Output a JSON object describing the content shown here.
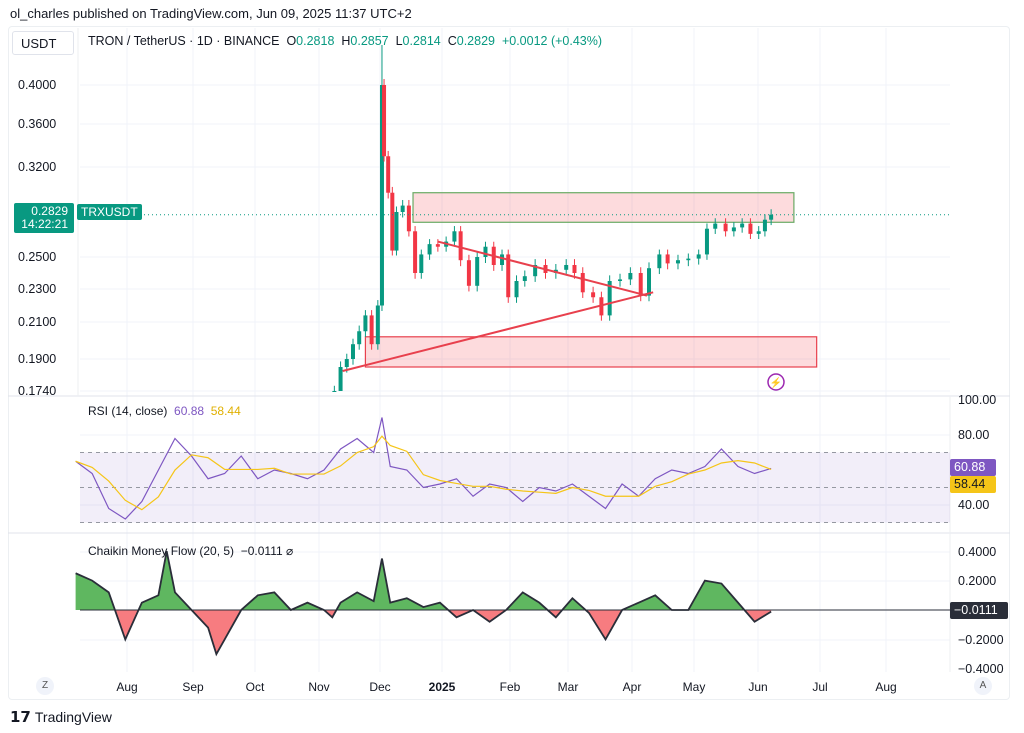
{
  "publisher": "ol_charles published on TradingView.com, Jun 09, 2025 11:37 UTC+2",
  "currency_button": "USDT",
  "legend": {
    "symbol": "TRON / TetherUS · 1D · BINANCE",
    "o_label": "O",
    "o": "0.2818",
    "h_label": "H",
    "h": "0.2857",
    "l_label": "L",
    "l": "0.2814",
    "c_label": "C",
    "c": "0.2829",
    "change": "+0.0012 (+0.43%)"
  },
  "price_tag": {
    "price": "0.2829",
    "countdown": "14:22:21",
    "symbol": "TRXUSDT"
  },
  "brand": "TradingView",
  "left_corner": "Z",
  "right_corner": "A",
  "colors": {
    "up": "#089981",
    "down": "#f23645",
    "rsi": "#7e57c2",
    "rsi_ma": "#f5c518",
    "cmf_pos": "#5fb760",
    "cmf_neg": "#f77c80",
    "trend": "#e8404d"
  },
  "chart_data": [
    {
      "type": "candlestick",
      "title": "TRON / TetherUS · 1D · BINANCE",
      "scale": "log",
      "y_ticks": [
        "0.4000",
        "0.3600",
        "0.3200",
        "0.2500",
        "0.2300",
        "0.2100",
        "0.1900",
        "0.1740"
      ],
      "x_ticks": [
        "Aug",
        "Sep",
        "Oct",
        "Nov",
        "Dec",
        "2025",
        "Feb",
        "Mar",
        "Apr",
        "May",
        "Jun",
        "Jul",
        "Aug"
      ],
      "close": [
        [
          "2024-11-10",
          0.174
        ],
        [
          "2024-11-13",
          0.186
        ],
        [
          "2024-11-16",
          0.19
        ],
        [
          "2024-11-19",
          0.198
        ],
        [
          "2024-11-22",
          0.205
        ],
        [
          "2024-11-25",
          0.214
        ],
        [
          "2024-11-28",
          0.198
        ],
        [
          "2024-12-01",
          0.22
        ],
        [
          "2024-12-03",
          0.4
        ],
        [
          "2024-12-04",
          0.33
        ],
        [
          "2024-12-06",
          0.3
        ],
        [
          "2024-12-08",
          0.255
        ],
        [
          "2024-12-10",
          0.285
        ],
        [
          "2024-12-13",
          0.29
        ],
        [
          "2024-12-16",
          0.27
        ],
        [
          "2024-12-19",
          0.24
        ],
        [
          "2024-12-22",
          0.252
        ],
        [
          "2024-12-26",
          0.26
        ],
        [
          "2024-12-30",
          0.258
        ],
        [
          "2025-01-03",
          0.262
        ],
        [
          "2025-01-07",
          0.27
        ],
        [
          "2025-01-10",
          0.248
        ],
        [
          "2025-01-14",
          0.232
        ],
        [
          "2025-01-18",
          0.25
        ],
        [
          "2025-01-22",
          0.258
        ],
        [
          "2025-01-26",
          0.245
        ],
        [
          "2025-01-30",
          0.252
        ],
        [
          "2025-02-02",
          0.225
        ],
        [
          "2025-02-06",
          0.235
        ],
        [
          "2025-02-10",
          0.238
        ],
        [
          "2025-02-15",
          0.245
        ],
        [
          "2025-02-20",
          0.24
        ],
        [
          "2025-02-25",
          0.242
        ],
        [
          "2025-03-02",
          0.245
        ],
        [
          "2025-03-06",
          0.24
        ],
        [
          "2025-03-10",
          0.228
        ],
        [
          "2025-03-15",
          0.225
        ],
        [
          "2025-03-19",
          0.214
        ],
        [
          "2025-03-23",
          0.235
        ],
        [
          "2025-03-28",
          0.236
        ],
        [
          "2025-04-02",
          0.24
        ],
        [
          "2025-04-07",
          0.226
        ],
        [
          "2025-04-11",
          0.243
        ],
        [
          "2025-04-16",
          0.252
        ],
        [
          "2025-04-20",
          0.246
        ],
        [
          "2025-04-25",
          0.248
        ],
        [
          "2025-04-30",
          0.249
        ],
        [
          "2025-05-05",
          0.252
        ],
        [
          "2025-05-09",
          0.272
        ],
        [
          "2025-05-13",
          0.276
        ],
        [
          "2025-05-18",
          0.27
        ],
        [
          "2025-05-22",
          0.273
        ],
        [
          "2025-05-26",
          0.276
        ],
        [
          "2025-05-30",
          0.268
        ],
        [
          "2025-06-03",
          0.27
        ],
        [
          "2025-06-06",
          0.279
        ],
        [
          "2025-06-09",
          0.2829
        ]
      ],
      "zones": [
        {
          "from": "2024-12-18",
          "to": "2025-06-20",
          "top": 0.3,
          "bottom": 0.277,
          "border": "#6aaa64"
        },
        {
          "from": "2024-11-25",
          "to": "2025-07-01",
          "top": 0.202,
          "bottom": 0.186,
          "border": "#e8404d"
        }
      ],
      "trendlines": [
        [
          [
            "2024-12-30",
            0.262
          ],
          [
            "2025-04-10",
            0.226
          ]
        ],
        [
          [
            "2024-11-14",
            0.184
          ],
          [
            "2025-04-13",
            0.228
          ]
        ]
      ]
    },
    {
      "type": "line",
      "title": "RSI (14, close)",
      "value": "60.88",
      "ma_value": "58.44",
      "y_ticks": [
        "100.00",
        "80.00",
        "40.00"
      ],
      "band": [
        30,
        70
      ],
      "series": [
        [
          "2024-07-08",
          65
        ],
        [
          "2024-07-16",
          58
        ],
        [
          "2024-07-24",
          38
        ],
        [
          "2024-08-01",
          32
        ],
        [
          "2024-08-09",
          42
        ],
        [
          "2024-08-17",
          60
        ],
        [
          "2024-08-25",
          78
        ],
        [
          "2024-09-02",
          68
        ],
        [
          "2024-09-10",
          55
        ],
        [
          "2024-09-18",
          58
        ],
        [
          "2024-09-26",
          68
        ],
        [
          "2024-10-04",
          55
        ],
        [
          "2024-10-12",
          60
        ],
        [
          "2024-10-20",
          58
        ],
        [
          "2024-10-28",
          55
        ],
        [
          "2024-11-05",
          60
        ],
        [
          "2024-11-13",
          72
        ],
        [
          "2024-11-21",
          78
        ],
        [
          "2024-11-29",
          70
        ],
        [
          "2024-12-03",
          90
        ],
        [
          "2024-12-07",
          62
        ],
        [
          "2024-12-15",
          60
        ],
        [
          "2024-12-23",
          50
        ],
        [
          "2024-12-31",
          52
        ],
        [
          "2025-01-08",
          55
        ],
        [
          "2025-01-16",
          45
        ],
        [
          "2025-01-24",
          52
        ],
        [
          "2025-02-01",
          50
        ],
        [
          "2025-02-09",
          42
        ],
        [
          "2025-02-17",
          50
        ],
        [
          "2025-02-25",
          48
        ],
        [
          "2025-03-05",
          52
        ],
        [
          "2025-03-13",
          45
        ],
        [
          "2025-03-21",
          38
        ],
        [
          "2025-03-29",
          52
        ],
        [
          "2025-04-06",
          45
        ],
        [
          "2025-04-14",
          55
        ],
        [
          "2025-04-22",
          60
        ],
        [
          "2025-04-30",
          58
        ],
        [
          "2025-05-08",
          62
        ],
        [
          "2025-05-16",
          72
        ],
        [
          "2025-05-24",
          62
        ],
        [
          "2025-06-01",
          58
        ],
        [
          "2025-06-09",
          60.88
        ]
      ]
    },
    {
      "type": "area",
      "title": "Chaikin Money Flow (20, 5)",
      "value": "−0.0111",
      "y_ticks": [
        "0.4000",
        "0.2000",
        "−0.2000",
        "−0.4000"
      ],
      "series": [
        [
          "2024-07-08",
          0.25
        ],
        [
          "2024-07-16",
          0.2
        ],
        [
          "2024-07-24",
          0.12
        ],
        [
          "2024-08-01",
          -0.2
        ],
        [
          "2024-08-09",
          0.05
        ],
        [
          "2024-08-17",
          0.1
        ],
        [
          "2024-08-21",
          0.4
        ],
        [
          "2024-08-25",
          0.12
        ],
        [
          "2024-09-02",
          0.0
        ],
        [
          "2024-09-10",
          -0.12
        ],
        [
          "2024-09-14",
          -0.3
        ],
        [
          "2024-09-18",
          -0.2
        ],
        [
          "2024-09-26",
          0.0
        ],
        [
          "2024-10-04",
          0.1
        ],
        [
          "2024-10-12",
          0.12
        ],
        [
          "2024-10-20",
          0.0
        ],
        [
          "2024-10-28",
          0.05
        ],
        [
          "2024-11-05",
          0.0
        ],
        [
          "2024-11-09",
          -0.05
        ],
        [
          "2024-11-13",
          0.05
        ],
        [
          "2024-11-21",
          0.12
        ],
        [
          "2024-11-29",
          0.06
        ],
        [
          "2024-12-03",
          0.35
        ],
        [
          "2024-12-07",
          0.05
        ],
        [
          "2024-12-15",
          0.08
        ],
        [
          "2024-12-23",
          0.02
        ],
        [
          "2024-12-31",
          0.05
        ],
        [
          "2025-01-08",
          -0.05
        ],
        [
          "2025-01-16",
          0.0
        ],
        [
          "2025-01-24",
          -0.08
        ],
        [
          "2025-02-01",
          0.0
        ],
        [
          "2025-02-09",
          0.12
        ],
        [
          "2025-02-17",
          0.05
        ],
        [
          "2025-02-25",
          -0.05
        ],
        [
          "2025-03-05",
          0.08
        ],
        [
          "2025-03-13",
          -0.02
        ],
        [
          "2025-03-21",
          -0.2
        ],
        [
          "2025-03-29",
          0.0
        ],
        [
          "2025-04-06",
          0.05
        ],
        [
          "2025-04-14",
          0.1
        ],
        [
          "2025-04-22",
          0.0
        ],
        [
          "2025-04-30",
          0.0
        ],
        [
          "2025-05-08",
          0.2
        ],
        [
          "2025-05-16",
          0.18
        ],
        [
          "2025-05-24",
          0.05
        ],
        [
          "2025-06-01",
          -0.08
        ],
        [
          "2025-06-09",
          -0.0111
        ]
      ]
    }
  ]
}
